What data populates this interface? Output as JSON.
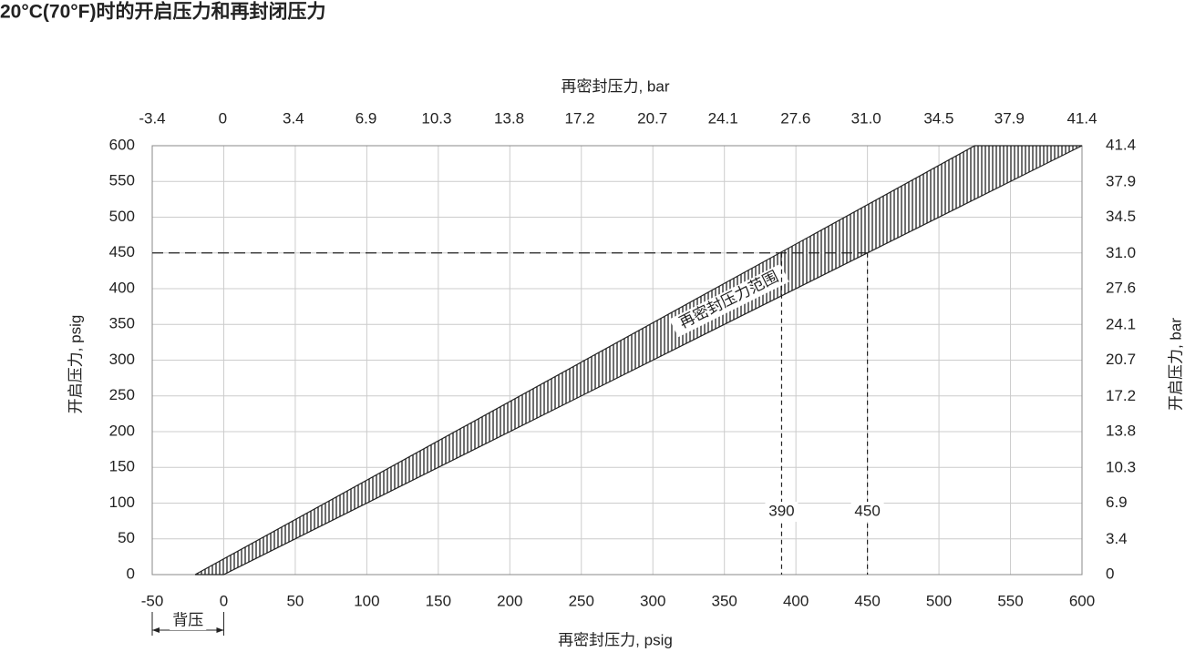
{
  "chart_data": {
    "type": "band",
    "title": "20°C(70°F)时的开启压力和再封闭压力",
    "x_label": "再密封压力, psig",
    "x2_label": "再密封压力, bar",
    "y_label": "开启压力, psig",
    "y2_label": "开启压力, bar",
    "xlim": [
      -50,
      600
    ],
    "xticks": [
      -50,
      0,
      50,
      100,
      150,
      200,
      250,
      300,
      350,
      400,
      450,
      500,
      550,
      600
    ],
    "x2lim": [
      -3.4,
      41.4
    ],
    "x2ticks": [
      -3.4,
      0,
      3.4,
      6.9,
      10.3,
      13.8,
      17.2,
      20.7,
      24.1,
      27.6,
      {
        "value": 31,
        "label": "31.0"
      },
      34.5,
      37.9,
      41.4
    ],
    "ylim": [
      0,
      600
    ],
    "yticks": [
      0,
      50,
      100,
      150,
      200,
      250,
      300,
      350,
      400,
      450,
      500,
      550,
      600
    ],
    "y2lim": [
      0,
      41.4
    ],
    "y2ticks": [
      0,
      3.4,
      6.9,
      10.3,
      13.8,
      17.2,
      20.7,
      24.1,
      27.6,
      {
        "value": 31,
        "label": "31.0"
      },
      34.5,
      37.9,
      41.4
    ],
    "grid": true,
    "band": {
      "label": "再密封压力范围",
      "y": [
        0,
        600
      ],
      "left_x": [
        -20,
        525
      ],
      "right_x": [
        0,
        600
      ],
      "color": "#222222"
    },
    "reference": {
      "y": 450,
      "x": [
        390,
        450
      ]
    },
    "back_pressure": {
      "label": "背压",
      "x": [
        -50,
        0
      ]
    }
  }
}
